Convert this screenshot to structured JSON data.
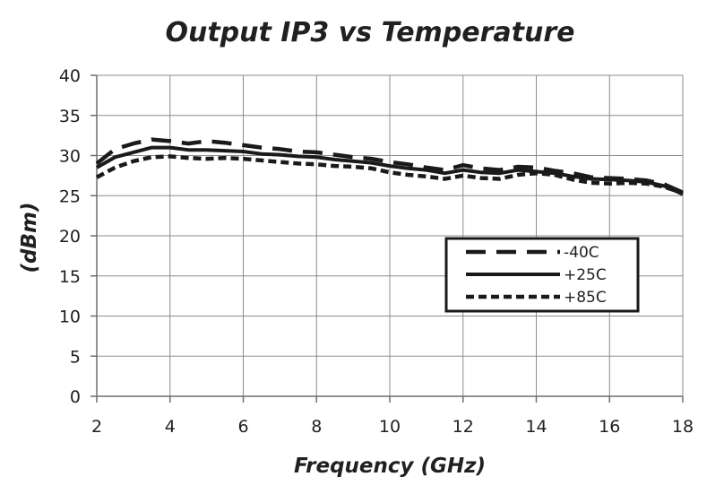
{
  "chart_data": {
    "type": "line",
    "title": "Output IP3 vs Temperature",
    "xlabel": "Frequency (GHz)",
    "ylabel": "(dBm)",
    "xlim": [
      2,
      18
    ],
    "ylim": [
      0,
      40
    ],
    "x_ticks": [
      2,
      4,
      6,
      8,
      10,
      12,
      14,
      16,
      18
    ],
    "y_ticks": [
      0,
      5,
      10,
      15,
      20,
      25,
      30,
      35,
      40
    ],
    "grid": true,
    "legend_position": "center-right",
    "x": [
      2,
      2.5,
      3,
      3.5,
      4,
      4.5,
      5,
      5.5,
      6,
      6.5,
      7,
      7.5,
      8,
      8.5,
      9,
      9.5,
      10,
      10.5,
      11,
      11.5,
      12,
      12.5,
      13,
      13.5,
      14,
      14.5,
      15,
      15.5,
      16,
      16.5,
      17,
      17.5,
      18
    ],
    "series": [
      {
        "name": "-40C",
        "style": "long-dash",
        "color": "#1a1a1a",
        "values": [
          29.0,
          30.8,
          31.5,
          32.0,
          31.8,
          31.5,
          31.8,
          31.6,
          31.3,
          31.0,
          30.8,
          30.5,
          30.4,
          30.1,
          29.8,
          29.6,
          29.2,
          28.9,
          28.5,
          28.2,
          28.8,
          28.4,
          28.2,
          28.6,
          28.5,
          28.1,
          27.8,
          27.3,
          27.2,
          27.1,
          26.9,
          26.4,
          25.4
        ]
      },
      {
        "name": "+25C",
        "style": "solid",
        "color": "#1a1a1a",
        "values": [
          28.5,
          29.8,
          30.4,
          31.0,
          31.0,
          30.7,
          30.7,
          30.6,
          30.5,
          30.2,
          30.1,
          29.9,
          29.8,
          29.5,
          29.3,
          29.1,
          28.7,
          28.4,
          28.2,
          27.8,
          28.2,
          27.9,
          27.8,
          28.2,
          28.0,
          27.8,
          27.4,
          27.1,
          27.0,
          26.9,
          26.7,
          26.2,
          25.2
        ]
      },
      {
        "name": "+85C",
        "style": "short-dash",
        "color": "#1a1a1a",
        "values": [
          27.3,
          28.5,
          29.3,
          29.8,
          29.9,
          29.7,
          29.6,
          29.7,
          29.6,
          29.4,
          29.2,
          29.0,
          28.9,
          28.7,
          28.6,
          28.4,
          27.9,
          27.6,
          27.4,
          27.1,
          27.5,
          27.2,
          27.1,
          27.6,
          27.8,
          27.6,
          27.0,
          26.6,
          26.5,
          26.6,
          26.5,
          26.1,
          25.3
        ]
      }
    ]
  }
}
